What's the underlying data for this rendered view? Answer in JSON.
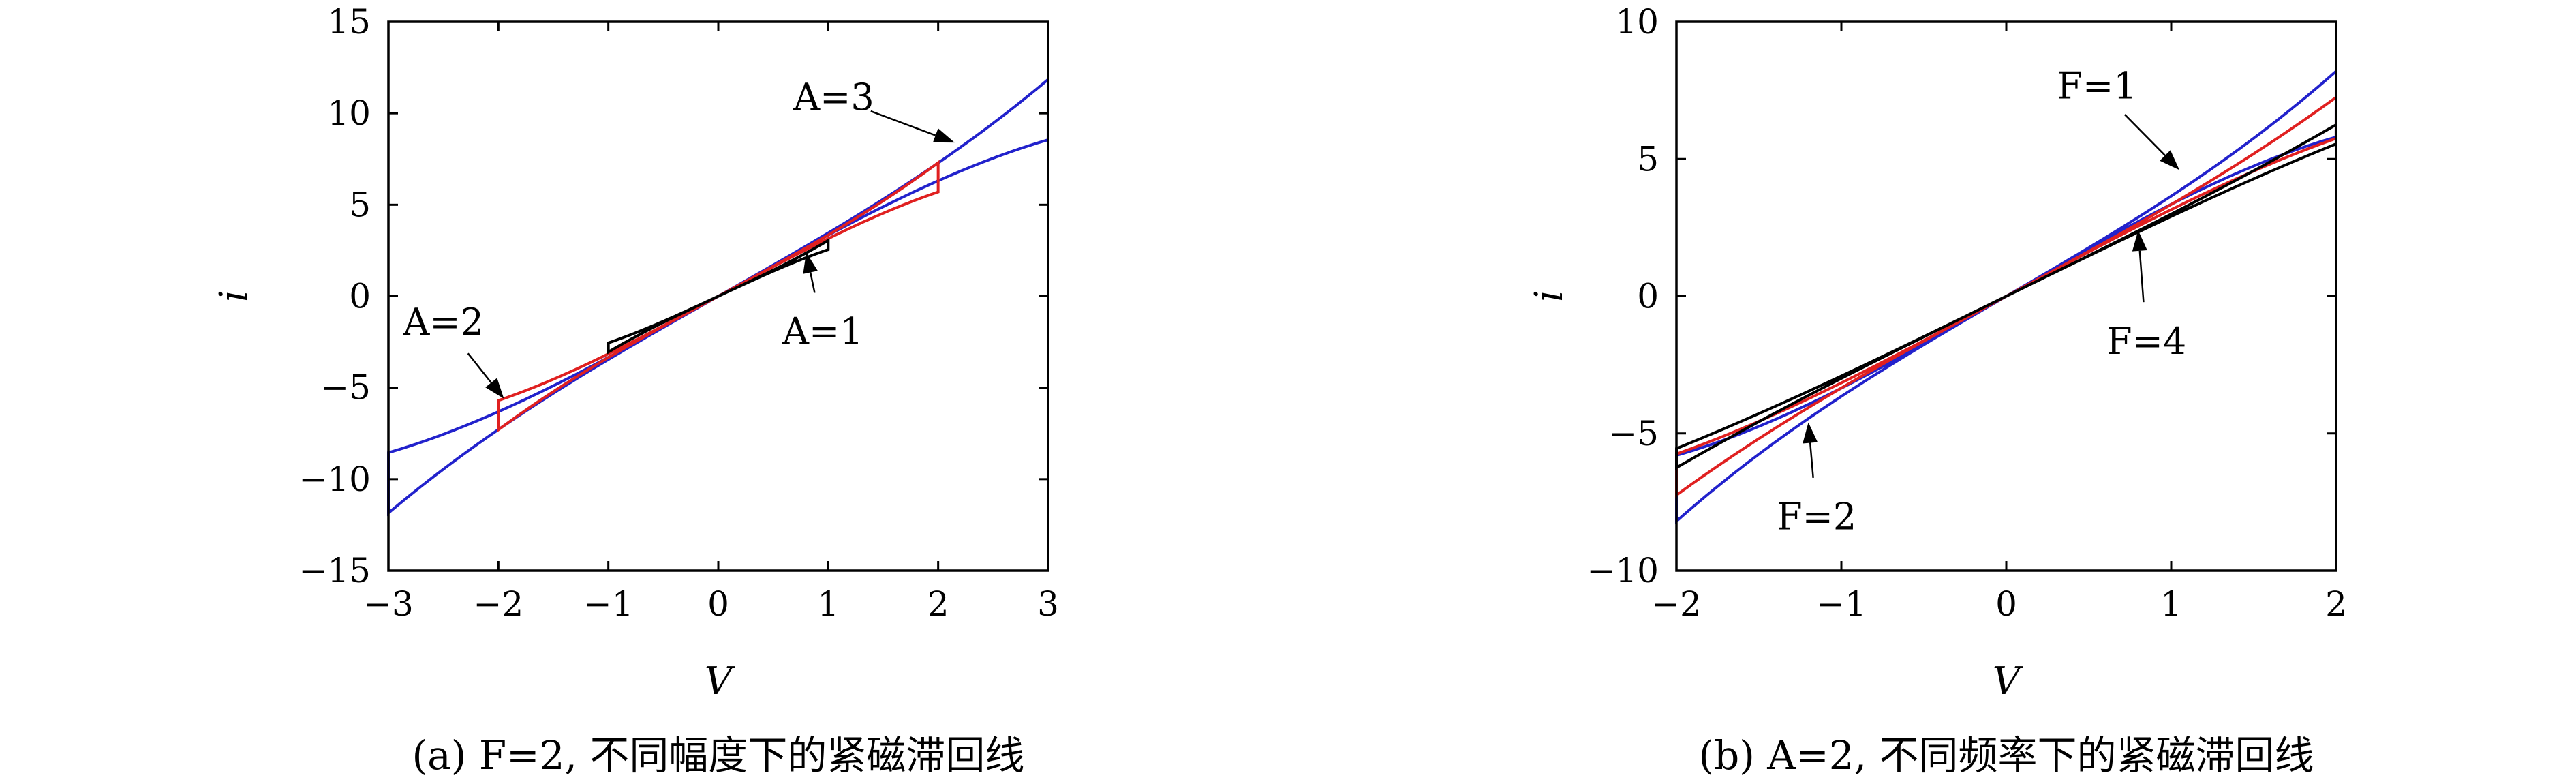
{
  "chart_data": [
    {
      "type": "line",
      "caption": "(a) F=2, 不同幅度下的紧磁滞回线",
      "xlabel": "V",
      "ylabel": "i",
      "xlim": [
        -3,
        3
      ],
      "ylim": [
        -15,
        15
      ],
      "xticks": [
        "−3",
        "−2",
        "−1",
        "0",
        "1",
        "2",
        "3"
      ],
      "yticks": [
        "15",
        "10",
        "5",
        "0",
        "−5",
        "−10",
        "−15"
      ],
      "xtick_values": [
        -3,
        -2,
        -1,
        0,
        1,
        2,
        3
      ],
      "ytick_values": [
        15,
        10,
        5,
        0,
        -5,
        -10,
        -15
      ],
      "grid": false,
      "series": [
        {
          "color": "#2222cc",
          "amplitude": 3,
          "peak_i": 10.2,
          "loop_width_i": 3.3
        },
        {
          "color": "#e02020",
          "amplitude": 2,
          "peak_i": 6.5,
          "loop_width_i": 1.6
        },
        {
          "color": "#000000",
          "amplitude": 1,
          "peak_i": 2.8,
          "loop_width_i": 0.5
        }
      ],
      "annotations": [
        {
          "text": "A=3",
          "text_at": [
            1.05,
            10.2
          ],
          "arrow_to": [
            2.15,
            8.4
          ]
        },
        {
          "text": "A=2",
          "text_at": [
            -2.5,
            -2.1
          ],
          "arrow_to": [
            -1.95,
            -5.6
          ]
        },
        {
          "text": "A=1",
          "text_at": [
            0.95,
            -2.6
          ],
          "arrow_to": [
            0.8,
            2.4
          ]
        }
      ]
    },
    {
      "type": "line",
      "caption": "(b) A=2, 不同频率下的紧磁滞回线",
      "xlabel": "V",
      "ylabel": "i",
      "xlim": [
        -2,
        2
      ],
      "ylim": [
        -10,
        10
      ],
      "xticks": [
        "−2",
        "−1",
        "0",
        "1",
        "2"
      ],
      "yticks": [
        "10",
        "5",
        "0",
        "−5",
        "−10"
      ],
      "xtick_values": [
        -2,
        -1,
        0,
        1,
        2
      ],
      "ytick_values": [
        10,
        5,
        0,
        -5,
        -10
      ],
      "grid": false,
      "series": [
        {
          "color": "#2222cc",
          "amplitude": 2,
          "peak_i": 7.0,
          "loop_width_i": 2.4
        },
        {
          "color": "#e02020",
          "amplitude": 2,
          "peak_i": 6.5,
          "loop_width_i": 1.5
        },
        {
          "color": "#000000",
          "amplitude": 2,
          "peak_i": 5.9,
          "loop_width_i": 0.7
        }
      ],
      "annotations": [
        {
          "text": "F=1",
          "text_at": [
            0.55,
            7.2
          ],
          "arrow_to": [
            1.05,
            4.6
          ]
        },
        {
          "text": "F=4",
          "text_at": [
            0.85,
            -2.1
          ],
          "arrow_to": [
            0.8,
            2.4
          ]
        },
        {
          "text": "F=2",
          "text_at": [
            -1.15,
            -8.5
          ],
          "arrow_to": [
            -1.2,
            -4.6
          ]
        }
      ]
    }
  ]
}
